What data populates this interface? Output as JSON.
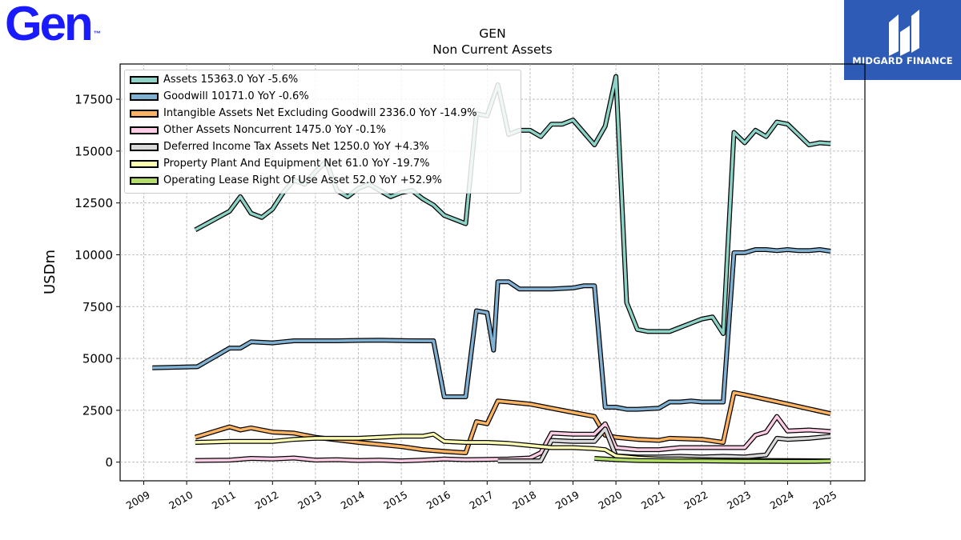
{
  "brand": {
    "logo_text": "Gen",
    "logo_tm": "™",
    "sponsor_text": "MIDGARD FINANCE"
  },
  "chart_data": {
    "type": "line",
    "title": "GEN",
    "subtitle": "Non Current  Assets",
    "xlabel": "",
    "ylabel": "USDm",
    "ylim": [
      -900,
      19200
    ],
    "xlim": [
      2008.45,
      2025.8
    ],
    "yticks": [
      0,
      2500,
      5000,
      7500,
      10000,
      12500,
      15000,
      17500
    ],
    "ytick_labels": [
      "0",
      "2500",
      "5000",
      "7500",
      "10000",
      "12500",
      "15000",
      "17500"
    ],
    "xticks": [
      2009,
      2010,
      2011,
      2012,
      2013,
      2014,
      2015,
      2016,
      2017,
      2018,
      2019,
      2020,
      2021,
      2022,
      2023,
      2024,
      2025
    ],
    "xtick_labels": [
      "2009",
      "2010",
      "2011",
      "2012",
      "2013",
      "2014",
      "2015",
      "2016",
      "2017",
      "2018",
      "2019",
      "2020",
      "2021",
      "2022",
      "2023",
      "2024",
      "2025"
    ],
    "grid": true,
    "legend_position": "top-left",
    "series": [
      {
        "name": "Assets",
        "legend": "Assets  15363.0 YoY -5.6%",
        "color": "#8dd3c7",
        "x": [
          2010.2,
          2011.0,
          2011.25,
          2011.5,
          2011.75,
          2012.0,
          2012.25,
          2012.5,
          2012.75,
          2013.0,
          2013.25,
          2013.5,
          2013.75,
          2014.0,
          2014.25,
          2014.5,
          2014.75,
          2015.0,
          2015.25,
          2015.5,
          2015.75,
          2016.0,
          2016.25,
          2016.5,
          2016.75,
          2017.0,
          2017.25,
          2017.5,
          2017.75,
          2018.0,
          2018.25,
          2018.5,
          2018.75,
          2019.0,
          2019.25,
          2019.5,
          2019.75,
          2020.0,
          2020.25,
          2020.5,
          2020.75,
          2021.0,
          2021.25,
          2021.5,
          2021.75,
          2022.0,
          2022.25,
          2022.5,
          2022.75,
          2023.0,
          2023.25,
          2023.5,
          2023.75,
          2024.0,
          2024.25,
          2024.5,
          2024.75,
          2025.0
        ],
        "y": [
          11200,
          12100,
          12800,
          12000,
          11800,
          12200,
          13000,
          13600,
          13400,
          14000,
          14500,
          13100,
          12800,
          13200,
          13400,
          13100,
          12800,
          13000,
          13100,
          12700,
          12400,
          11900,
          11700,
          11500,
          16800,
          16700,
          18200,
          15800,
          16000,
          16000,
          15700,
          16300,
          16300,
          16500,
          15900,
          15300,
          16200,
          18600,
          7700,
          6400,
          6300,
          6300,
          6300,
          6500,
          6700,
          6900,
          7000,
          6200,
          15900,
          15400,
          16000,
          15700,
          16400,
          16300,
          15800,
          15300,
          15400,
          15363
        ]
      },
      {
        "name": "Goodwill",
        "legend": "Goodwill  10171.0 YoY -0.6%",
        "color": "#80b1d3",
        "x": [
          2009.2,
          2010.25,
          2011.0,
          2011.25,
          2011.5,
          2012.0,
          2012.25,
          2012.5,
          2013.0,
          2013.5,
          2014.0,
          2014.5,
          2015.0,
          2015.5,
          2015.75,
          2016.0,
          2016.25,
          2016.5,
          2016.75,
          2017.0,
          2017.15,
          2017.25,
          2017.5,
          2017.75,
          2018.0,
          2018.5,
          2019.0,
          2019.25,
          2019.5,
          2019.75,
          2020.0,
          2020.25,
          2020.5,
          2021.0,
          2021.25,
          2021.5,
          2021.75,
          2022.0,
          2022.25,
          2022.5,
          2022.75,
          2023.0,
          2023.25,
          2023.5,
          2023.75,
          2024.0,
          2024.25,
          2024.5,
          2024.75,
          2025.0
        ],
        "y": [
          4550,
          4600,
          5500,
          5500,
          5800,
          5750,
          5800,
          5850,
          5850,
          5850,
          5870,
          5880,
          5860,
          5850,
          5850,
          3150,
          3150,
          3150,
          7300,
          7200,
          5400,
          8700,
          8700,
          8350,
          8350,
          8350,
          8400,
          8500,
          8500,
          2650,
          2650,
          2550,
          2550,
          2600,
          2900,
          2900,
          2950,
          2900,
          2900,
          2900,
          10100,
          10100,
          10250,
          10250,
          10200,
          10250,
          10200,
          10200,
          10250,
          10171
        ]
      },
      {
        "name": "Intangible Assets Net Excluding Goodwill",
        "legend": "Intangible Assets Net Excluding Goodwill  2336.0 YoY -14.9%",
        "color": "#fdb462",
        "x": [
          2010.2,
          2011.0,
          2011.25,
          2011.5,
          2012.0,
          2012.5,
          2013.0,
          2014.0,
          2015.0,
          2015.5,
          2016.0,
          2016.5,
          2016.75,
          2017.0,
          2017.25,
          2017.5,
          2018.0,
          2018.5,
          2019.0,
          2019.5,
          2019.75,
          2020.0,
          2020.5,
          2021.0,
          2021.25,
          2022.0,
          2022.5,
          2022.75,
          2023.0,
          2024.0,
          2025.0
        ],
        "y": [
          1200,
          1700,
          1550,
          1650,
          1450,
          1400,
          1200,
          950,
          750,
          600,
          520,
          450,
          1950,
          1850,
          2950,
          2900,
          2800,
          2600,
          2400,
          2200,
          1300,
          1200,
          1100,
          1050,
          1150,
          1100,
          950,
          3350,
          3250,
          2800,
          2336
        ]
      },
      {
        "name": "Other Assets Noncurrent",
        "legend": "Other Assets Noncurrent  1475.0 YoY -0.1%",
        "color": "#fccde5",
        "x": [
          2010.2,
          2011.0,
          2011.5,
          2012.0,
          2012.5,
          2013.0,
          2013.5,
          2014.0,
          2014.5,
          2015.0,
          2015.5,
          2016.0,
          2016.5,
          2017.0,
          2017.5,
          2018.0,
          2018.25,
          2018.5,
          2019.0,
          2019.5,
          2019.75,
          2020.0,
          2020.5,
          2021.0,
          2021.5,
          2022.0,
          2022.5,
          2023.0,
          2023.25,
          2023.5,
          2023.75,
          2024.0,
          2024.5,
          2025.0
        ],
        "y": [
          80,
          100,
          180,
          150,
          200,
          100,
          120,
          80,
          100,
          60,
          100,
          150,
          120,
          130,
          150,
          200,
          450,
          1400,
          1350,
          1350,
          1850,
          700,
          600,
          600,
          700,
          700,
          700,
          700,
          1300,
          1450,
          2200,
          1500,
          1550,
          1475
        ]
      },
      {
        "name": "Deferred Income Tax Assets Net",
        "legend": "Deferred Income Tax Assets Net  1250.0 YoY +4.3%",
        "color": "#d9d9d9",
        "x": [
          2017.25,
          2017.5,
          2018.0,
          2018.25,
          2018.5,
          2019.0,
          2019.5,
          2019.75,
          2020.0,
          2020.5,
          2021.0,
          2021.5,
          2022.0,
          2022.5,
          2023.0,
          2023.25,
          2023.5,
          2023.75,
          2024.0,
          2024.5,
          2025.0
        ],
        "y": [
          60,
          60,
          60,
          60,
          1050,
          1000,
          1000,
          1600,
          300,
          250,
          250,
          280,
          250,
          280,
          250,
          300,
          350,
          1150,
          1100,
          1150,
          1250
        ]
      },
      {
        "name": "Property Plant And Equipment Net",
        "legend": "Property Plant And Equipment Net  61.0 YoY -19.7%",
        "color": "#ffffb3",
        "x": [
          2010.2,
          2011.0,
          2011.5,
          2012.0,
          2012.5,
          2013.0,
          2013.5,
          2014.0,
          2014.5,
          2015.0,
          2015.5,
          2015.75,
          2016.0,
          2016.5,
          2017.0,
          2017.5,
          2018.0,
          2018.5,
          2019.0,
          2019.5,
          2019.75,
          2020.0,
          2020.5,
          2021.0,
          2021.5,
          2022.0,
          2022.5,
          2023.0,
          2023.5,
          2024.0,
          2024.5,
          2025.0
        ],
        "y": [
          950,
          1000,
          1000,
          1000,
          1100,
          1150,
          1150,
          1150,
          1200,
          1250,
          1250,
          1350,
          1000,
          950,
          950,
          900,
          800,
          700,
          700,
          650,
          600,
          300,
          200,
          150,
          150,
          120,
          100,
          90,
          80,
          75,
          70,
          61
        ]
      },
      {
        "name": "Operating Lease Right Of Use Asset",
        "legend": "Operating Lease Right Of Use Asset  52.0 YoY +52.9%",
        "color": "#b3de69",
        "x": [
          2019.5,
          2019.75,
          2020.0,
          2020.5,
          2021.0,
          2021.5,
          2022.0,
          2022.5,
          2023.0,
          2023.5,
          2024.0,
          2024.5,
          2025.0
        ],
        "y": [
          180,
          150,
          120,
          80,
          70,
          60,
          60,
          50,
          40,
          40,
          35,
          34,
          52
        ]
      }
    ]
  }
}
